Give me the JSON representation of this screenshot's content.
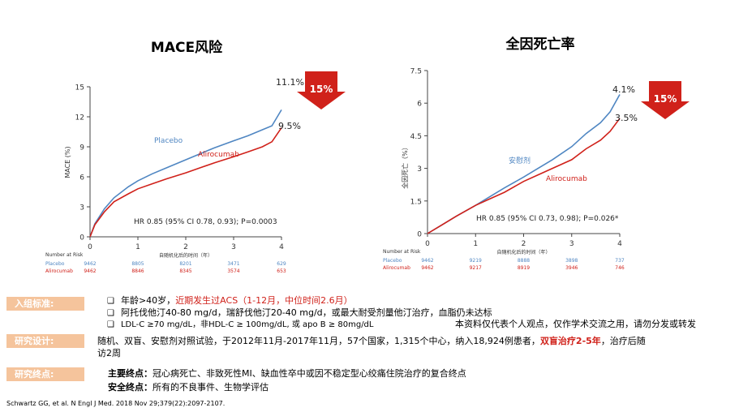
{
  "chart_data": [
    {
      "type": "line",
      "title": "MACE风险",
      "ylabel": "MACE (%)",
      "xlabel": "自随机化后的时间（年）",
      "x_ticks": [
        "0",
        "1",
        "2",
        "3",
        "4"
      ],
      "y_ticks": [
        "0",
        "3",
        "6",
        "9",
        "12",
        "15"
      ],
      "xlim": [
        0,
        4
      ],
      "ylim": [
        0,
        15
      ],
      "series": [
        {
          "name": "Placebo",
          "color": "#4f86c2",
          "x": [
            0,
            0.1,
            0.3,
            0.5,
            0.8,
            1,
            1.3,
            1.6,
            2,
            2.3,
            2.6,
            3,
            3.3,
            3.6,
            3.8,
            4
          ],
          "y": [
            0,
            1.3,
            2.8,
            3.9,
            5.0,
            5.6,
            6.3,
            6.9,
            7.7,
            8.3,
            8.9,
            9.6,
            10.1,
            10.7,
            11.1,
            12.7
          ]
        },
        {
          "name": "Alirocumab",
          "color": "#d0211a",
          "x": [
            0,
            0.1,
            0.3,
            0.5,
            0.8,
            1,
            1.3,
            1.6,
            2,
            2.3,
            2.6,
            3,
            3.3,
            3.6,
            3.8,
            4
          ],
          "y": [
            0,
            1.2,
            2.5,
            3.5,
            4.3,
            4.8,
            5.3,
            5.8,
            6.4,
            6.9,
            7.4,
            8.0,
            8.5,
            9.0,
            9.5,
            10.9
          ]
        }
      ],
      "end_labels": [
        "11.1%",
        "9.5%"
      ],
      "reduction_label": "15%",
      "hr_text": "HR 0.85 (95% CI 0.78, 0.93); P=0.0003",
      "risk_table": {
        "header": "Number at Risk",
        "rows": [
          {
            "name": "Placebo",
            "values": [
              "9462",
              "8805",
              "8201",
              "3471",
              "629"
            ]
          },
          {
            "name": "Alirocumab",
            "values": [
              "9462",
              "8846",
              "8345",
              "3574",
              "653"
            ]
          }
        ]
      }
    },
    {
      "type": "line",
      "title": "全因死亡率",
      "ylabel": "全因死亡（%）",
      "xlabel": "自随机化后的时间（年）",
      "x_ticks": [
        "0",
        "1",
        "2",
        "3",
        "4"
      ],
      "y_ticks": [
        "0",
        "1.5",
        "3",
        "4.5",
        "6",
        "7.5"
      ],
      "xlim": [
        0,
        4
      ],
      "ylim": [
        0,
        7.5
      ],
      "series": [
        {
          "name": "安慰剂",
          "color": "#4f86c2",
          "x": [
            0,
            0.3,
            0.6,
            1,
            1.3,
            1.6,
            2,
            2.3,
            2.6,
            3,
            3.3,
            3.6,
            3.8,
            4
          ],
          "y": [
            0,
            0.4,
            0.8,
            1.3,
            1.7,
            2.1,
            2.6,
            3.0,
            3.4,
            4.0,
            4.6,
            5.1,
            5.6,
            6.4
          ]
        },
        {
          "name": "Alirocumab",
          "color": "#d0211a",
          "x": [
            0,
            0.3,
            0.6,
            1,
            1.3,
            1.6,
            2,
            2.3,
            2.6,
            3,
            3.3,
            3.6,
            3.8,
            4
          ],
          "y": [
            0,
            0.4,
            0.8,
            1.3,
            1.6,
            1.9,
            2.4,
            2.7,
            3.0,
            3.4,
            3.9,
            4.3,
            4.7,
            5.3
          ]
        }
      ],
      "end_labels": [
        "4.1%",
        "3.5%"
      ],
      "reduction_label": "15%",
      "hr_text": "HR 0.85 (95% CI 0.73, 0.98); P=0.026*",
      "risk_table": {
        "header": "Number at Risk",
        "rows": [
          {
            "name": "Placebo",
            "values": [
              "9462",
              "9219",
              "8888",
              "3898",
              "737"
            ]
          },
          {
            "name": "Alirocumab",
            "values": [
              "9462",
              "9217",
              "8919",
              "3946",
              "746"
            ]
          }
        ]
      }
    }
  ],
  "sections": {
    "inclusion": {
      "label": "入组标准:",
      "item1_a": "年龄>40岁，",
      "item1_b": "近期发生过ACS（1-12月，中位时间2.6月）",
      "item2": "阿托伐他汀40-80 mg/d，瑞舒伐他汀20-40 mg/d，或最大耐受剂量他汀治疗，血脂仍未达标",
      "item3": "LDL-C ≥70 mg/dL，非HDL-C ≥ 100mg/dL, 或 apo B ≥ 80mg/dL",
      "disclaimer": "本资料仅代表个人观点，仅作学术交流之用，请勿分发或转发"
    },
    "design": {
      "label": "研究设计:",
      "text_a": "随机、双盲、安慰剂对照试验，于2012年11月-2017年11月，57个国家，1,315个中心，纳入18,924例患者，",
      "text_b": "双盲治疗2-5年",
      "text_c": "，治疗后随",
      "text_d": "访2周"
    },
    "endpoints": {
      "label": "研究终点:",
      "primary_label": "主要终点：",
      "primary_text": "冠心病死亡、非致死性MI、缺血性卒中或因不稳定型心绞痛住院治疗的复合终点",
      "safety_label": "安全终点：",
      "safety_text": "所有的不良事件、生物学评估"
    }
  },
  "citation": "Schwartz GG, et al. N Engl J Med. 2018 Nov 29;379(22):2097-2107.",
  "colors": {
    "placebo": "#4f86c2",
    "alirocumab": "#d0211a",
    "label_bg": "#f5c49c",
    "arrow": "#d0211a"
  }
}
